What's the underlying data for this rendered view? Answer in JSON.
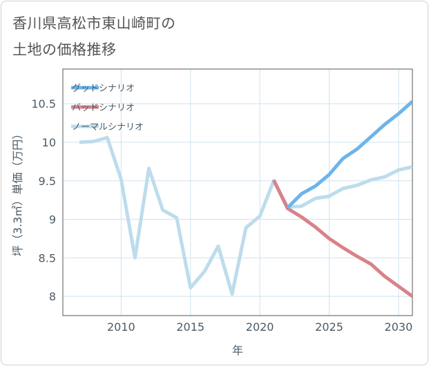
{
  "title_line1": "香川県高松市東山崎町の",
  "title_line2": "土地の価格推移",
  "colors": {
    "good": "#6db4ea",
    "bad": "#d98289",
    "normal": "#bddcec",
    "grid": "#cde3ee",
    "frame": "#555555",
    "text": "#4a5a66"
  },
  "chart_data": {
    "type": "line",
    "title": "香川県高松市東山崎町の土地の価格推移",
    "xlabel": "年",
    "ylabel": "坪（3.3㎡）単価（万円）",
    "xlim": [
      2005.8,
      2031
    ],
    "ylim": [
      7.75,
      10.95
    ],
    "xticks": [
      2010,
      2015,
      2020,
      2025,
      2030
    ],
    "yticks": [
      8,
      8.5,
      9,
      9.5,
      10,
      10.5
    ],
    "ytick_labels": [
      "8",
      "8.5",
      "9",
      "9.5",
      "10",
      "10.5"
    ],
    "grid": true,
    "legend_position": "top-left",
    "series": [
      {
        "name": "グッドシナリオ",
        "color": "#6db4ea",
        "x": [
          2022,
          2023,
          2024,
          2025,
          2026,
          2027,
          2028,
          2029,
          2030,
          2031
        ],
        "y": [
          9.15,
          9.33,
          9.43,
          9.58,
          9.79,
          9.91,
          10.07,
          10.23,
          10.37,
          10.53
        ]
      },
      {
        "name": "バッドシナリオ",
        "color": "#d98289",
        "x": [
          2021,
          2022,
          2023,
          2024,
          2025,
          2026,
          2027,
          2028,
          2029,
          2030,
          2031
        ],
        "y": [
          9.51,
          9.14,
          9.03,
          8.9,
          8.75,
          8.63,
          8.52,
          8.42,
          8.26,
          8.13,
          8.0
        ]
      },
      {
        "name": "ノーマルシナリオ",
        "color": "#bddcec",
        "x": [
          2007,
          2008,
          2009,
          2010,
          2011,
          2012,
          2013,
          2014,
          2015,
          2016,
          2017,
          2018,
          2019,
          2020,
          2021,
          2022,
          2023,
          2024,
          2025,
          2026,
          2027,
          2028,
          2029,
          2030,
          2031
        ],
        "y": [
          10.0,
          10.01,
          10.06,
          9.52,
          8.5,
          9.66,
          9.12,
          9.02,
          8.11,
          8.32,
          8.65,
          8.03,
          8.89,
          9.04,
          9.5,
          9.16,
          9.17,
          9.27,
          9.3,
          9.4,
          9.44,
          9.51,
          9.55,
          9.64,
          9.68
        ]
      }
    ]
  }
}
